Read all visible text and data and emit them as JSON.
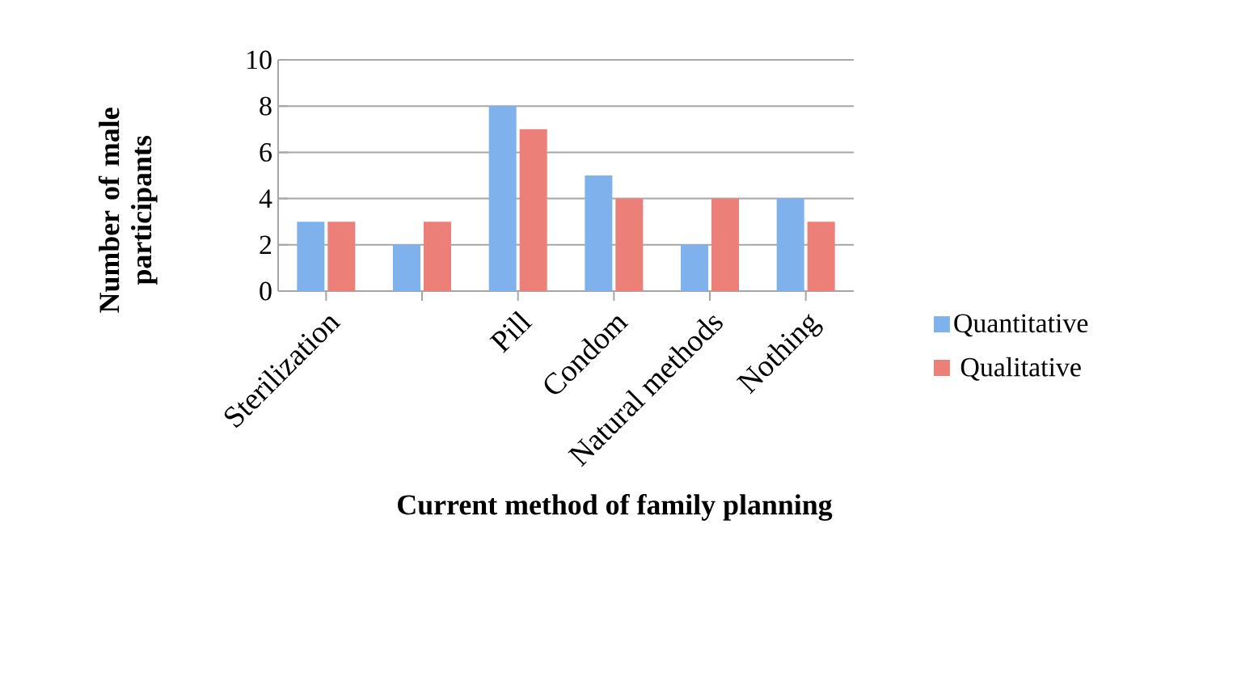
{
  "chart_data": {
    "type": "bar",
    "xlabel": "Current method of family planning",
    "ylabel": "Number of male participants",
    "categories": [
      "Sterilization",
      null,
      "Pill",
      "Condom",
      "Natural methods",
      "Nothing"
    ],
    "series": [
      {
        "name": "Quantitative",
        "color": "#7fb2ec",
        "values": [
          3,
          2,
          8,
          5,
          2,
          4
        ]
      },
      {
        "name": "Qualitative",
        "color": "#ec8078",
        "values": [
          3,
          3,
          7,
          4,
          4,
          3
        ]
      }
    ],
    "ylim": [
      0,
      10
    ],
    "yticks": [
      0,
      2,
      4,
      6,
      8,
      10
    ],
    "grid": "y",
    "legend": "right"
  }
}
